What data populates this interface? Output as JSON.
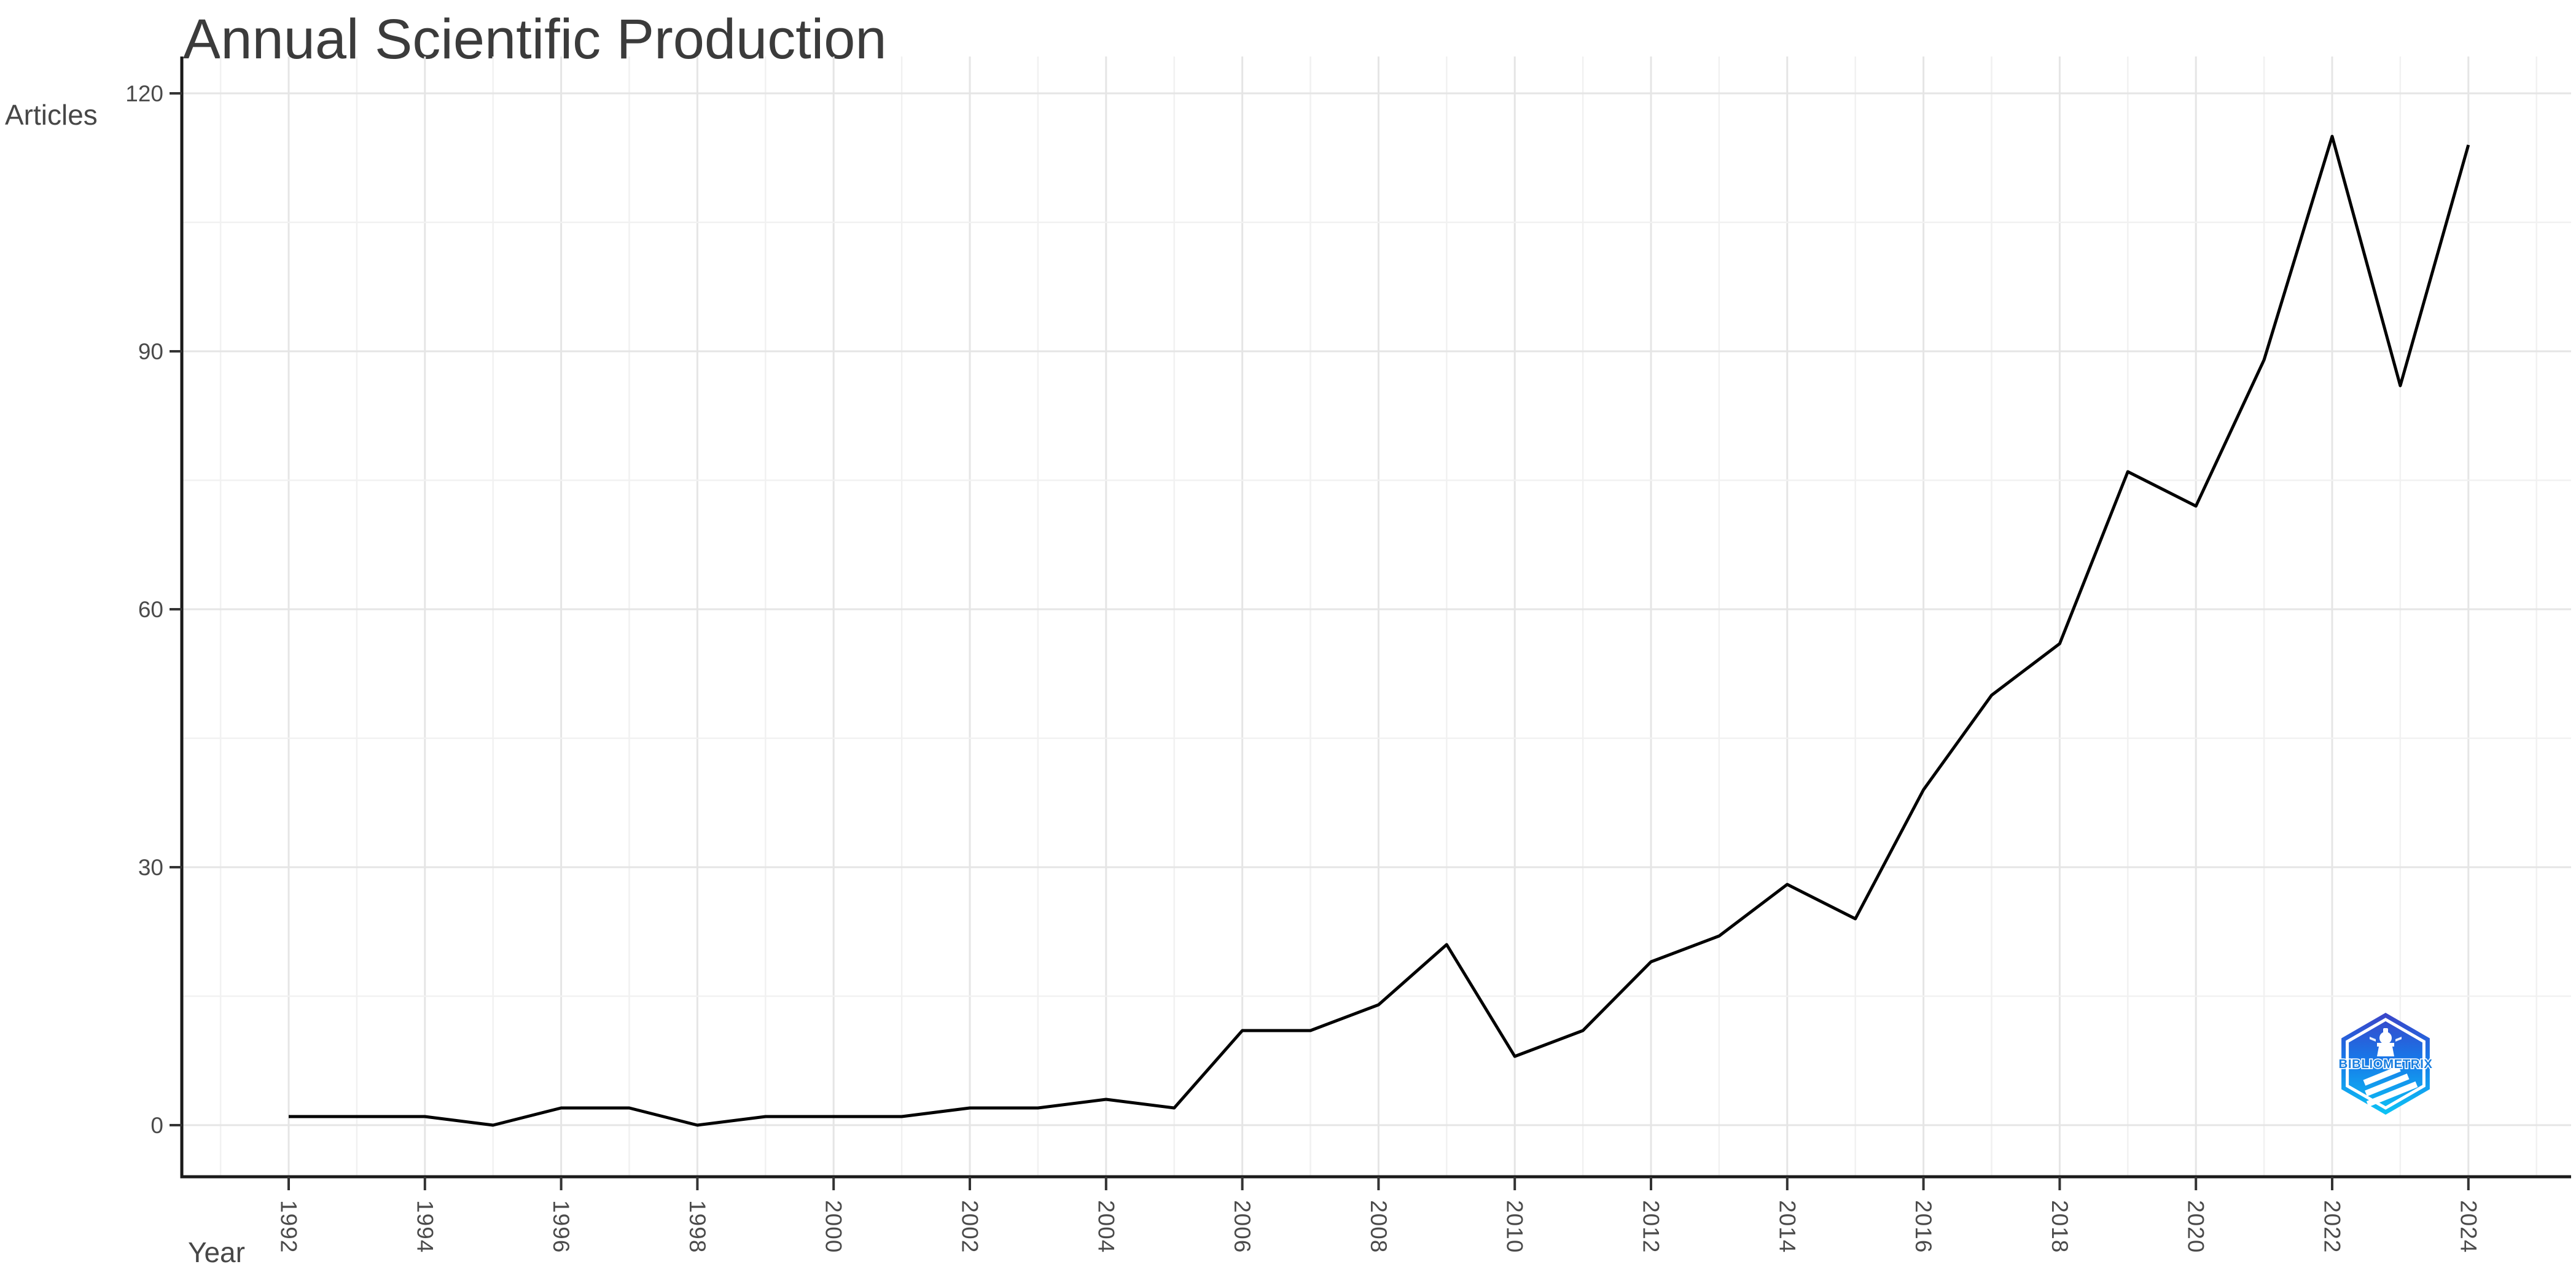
{
  "title": "Annual Scientific Production",
  "axes": {
    "x_title": "Year",
    "y_title": "Articles",
    "y_tick_labels": [
      "0",
      "30",
      "60",
      "90",
      "120"
    ],
    "x_tick_labels": [
      "1992",
      "1994",
      "1996",
      "1998",
      "2000",
      "2002",
      "2004",
      "2006",
      "2008",
      "2010",
      "2012",
      "2014",
      "2016",
      "2018",
      "2020",
      "2022",
      "2024"
    ]
  },
  "chart_data": {
    "type": "line",
    "title": "Annual Scientific Production",
    "xlabel": "Year",
    "ylabel": "Articles",
    "x": [
      1992,
      1993,
      1994,
      1995,
      1996,
      1997,
      1998,
      1999,
      2000,
      2001,
      2002,
      2003,
      2004,
      2005,
      2006,
      2007,
      2008,
      2009,
      2010,
      2011,
      2012,
      2013,
      2014,
      2015,
      2016,
      2017,
      2018,
      2019,
      2020,
      2021,
      2022,
      2023,
      2024
    ],
    "series": [
      {
        "name": "Articles",
        "values": [
          1,
          1,
          1,
          0,
          2,
          2,
          0,
          1,
          1,
          1,
          2,
          2,
          3,
          2,
          11,
          11,
          14,
          21,
          8,
          11,
          19,
          22,
          28,
          24,
          39,
          50,
          56,
          76,
          72,
          89,
          115,
          86,
          114
        ]
      }
    ],
    "xlim": [
      1992,
      2024
    ],
    "ylim": [
      0,
      120
    ],
    "y_major_step": 30,
    "y_minor_step": 15,
    "x_major_step": 2,
    "x_minor_step": 1,
    "grid": true,
    "legend": false,
    "line_color": "#000000"
  },
  "logo": {
    "label": "BIBLIOMETRIX",
    "gradient_top": "#3b44c8",
    "gradient_mid": "#1877e8",
    "gradient_bottom": "#0cc4f5",
    "text_color": "#1a7fe0"
  },
  "colors": {
    "background": "#ffffff",
    "line": "#000000",
    "axis": "#1a1a1a",
    "tick": "#333333",
    "grid_major": "#e5e5e5",
    "grid_minor": "#f1f1f1",
    "tick_text": "#4a4a4a",
    "title_text": "#3b3b3b",
    "axis_title_text": "#474747"
  }
}
